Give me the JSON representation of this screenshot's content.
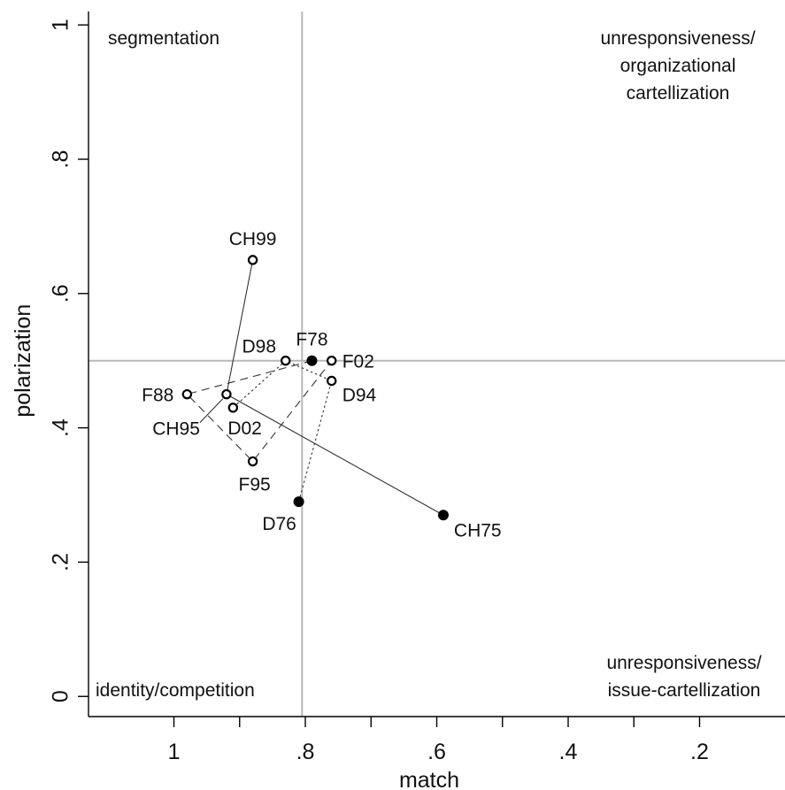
{
  "chart_data": {
    "type": "scatter",
    "xlabel": "match",
    "ylabel": "polarization",
    "xlim": [
      1.13,
      0.07
    ],
    "ylim": [
      -0.03,
      1.02
    ],
    "x_reversed": true,
    "x_ticks": [
      1.0,
      0.8,
      0.6,
      0.4,
      0.2
    ],
    "x_tick_labels": [
      "1",
      ".8",
      ".6",
      ".4",
      ".2"
    ],
    "x_minor_ticks": [
      0.9,
      0.7,
      0.5,
      0.3
    ],
    "y_ticks": [
      0,
      0.2,
      0.4,
      0.6,
      0.8,
      1.0
    ],
    "y_tick_labels": [
      "0",
      ".2",
      ".4",
      ".6",
      ".8",
      "1"
    ],
    "reference_lines": {
      "x": 0.805,
      "y": 0.5
    },
    "grid": false,
    "quadrant_labels": {
      "top_left": [
        "segmentation"
      ],
      "top_right": [
        "unresponsiveness/",
        "organizational",
        "cartellization"
      ],
      "bottom_left": [
        "identity/competition"
      ],
      "bottom_right": [
        "unresponsiveness/",
        "issue-cartellization"
      ]
    },
    "points": [
      {
        "id": "CH99",
        "label": "CH99",
        "x": 0.88,
        "y": 0.65,
        "filled": false,
        "label_pos": "above"
      },
      {
        "id": "D98",
        "label": "D98",
        "x": 0.83,
        "y": 0.5,
        "filled": false,
        "label_pos": "upper-left"
      },
      {
        "id": "F78",
        "label": "F78",
        "x": 0.79,
        "y": 0.5,
        "filled": true,
        "label_pos": "above"
      },
      {
        "id": "F02",
        "label": "F02",
        "x": 0.76,
        "y": 0.5,
        "filled": false,
        "label_pos": "right"
      },
      {
        "id": "D94",
        "label": "D94",
        "x": 0.76,
        "y": 0.47,
        "filled": false,
        "label_pos": "lower-right"
      },
      {
        "id": "F88",
        "label": "F88",
        "x": 0.98,
        "y": 0.45,
        "filled": false,
        "label_pos": "left"
      },
      {
        "id": "CH95",
        "label": "CH95",
        "x": 0.92,
        "y": 0.45,
        "filled": false,
        "label_pos": "lower-left-leader"
      },
      {
        "id": "D02",
        "label": "D02",
        "x": 0.91,
        "y": 0.43,
        "filled": false,
        "label_pos": "below-right"
      },
      {
        "id": "F95",
        "label": "F95",
        "x": 0.88,
        "y": 0.35,
        "filled": false,
        "label_pos": "below"
      },
      {
        "id": "D76",
        "label": "D76",
        "x": 0.81,
        "y": 0.29,
        "filled": true,
        "label_pos": "below-left"
      },
      {
        "id": "CH75",
        "label": "CH75",
        "x": 0.59,
        "y": 0.27,
        "filled": true,
        "label_pos": "below-right"
      }
    ],
    "series": [
      {
        "group": "CH",
        "line_style": "solid",
        "path": [
          "CH75",
          "CH95",
          "CH99"
        ]
      },
      {
        "group": "F",
        "line_style": "dashed",
        "path": [
          "F78",
          "F88",
          "F95",
          "F02"
        ]
      },
      {
        "group": "D",
        "line_style": "dotted",
        "path": [
          "D76",
          "D94",
          "D98",
          "D02"
        ]
      }
    ]
  }
}
